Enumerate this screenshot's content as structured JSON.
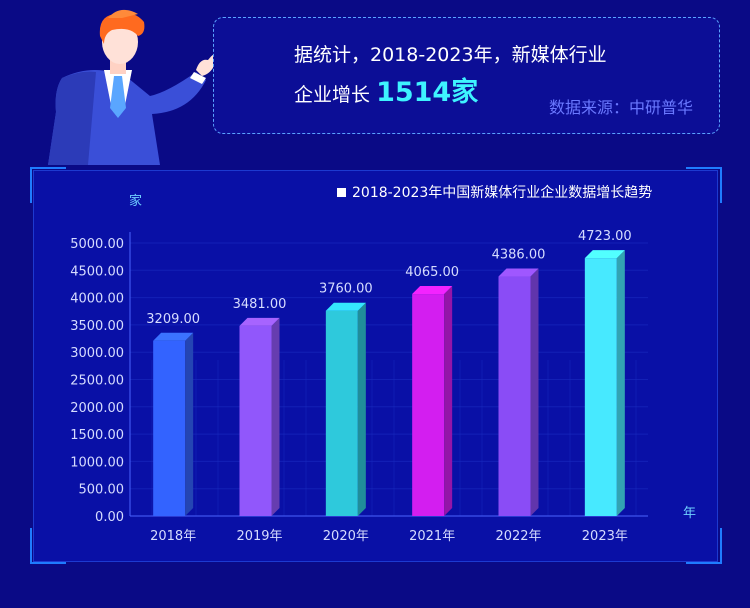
{
  "callout": {
    "line1": "据统计，2018-2023年，新媒体行业",
    "line2_prefix": "企业增长",
    "highlight": "1514家",
    "source": "数据来源：中研普华"
  },
  "colors": {
    "background": "#0a0a86",
    "panel": "#0910a6",
    "highlight": "#3ef3ff",
    "source": "#6a78ff"
  },
  "chart_data": {
    "type": "bar",
    "title": "2018-2023年中国新媒体行业企业数据增长趋势",
    "ylabel": "家",
    "xlabel": "年",
    "categories": [
      "2018年",
      "2019年",
      "2020年",
      "2021年",
      "2022年",
      "2023年"
    ],
    "values": [
      3209.0,
      3481.0,
      3760.0,
      4065.0,
      4386.0,
      4723.0
    ],
    "value_labels": [
      "3209.00",
      "3481.00",
      "3760.00",
      "4065.00",
      "4386.00",
      "4723.00"
    ],
    "ylim": [
      0,
      5000
    ],
    "yticks": [
      "0.00",
      "500.00",
      "1000.00",
      "1500.00",
      "2000.00",
      "2500.00",
      "3000.00",
      "3500.00",
      "4000.00",
      "4500.00",
      "5000.00"
    ],
    "bar_colors": [
      "#3363ff",
      "#9157fb",
      "#2ec9dc",
      "#d31ef0",
      "#8a4cf6",
      "#47e9ff"
    ],
    "legend_position": "top-right",
    "grid": true
  }
}
